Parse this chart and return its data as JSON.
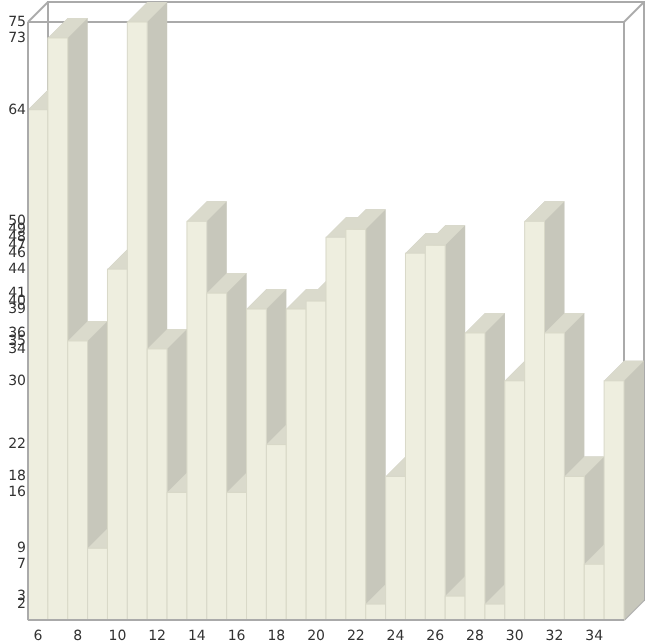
{
  "chart_data": {
    "type": "bar",
    "x": [
      6,
      7,
      8,
      9,
      10,
      11,
      12,
      13,
      14,
      15,
      16,
      17,
      18,
      19,
      20,
      21,
      22,
      23,
      24,
      25,
      26,
      27,
      28,
      29,
      30,
      31,
      32,
      33,
      34,
      35
    ],
    "values": [
      64,
      73,
      35,
      9,
      44,
      75,
      34,
      16,
      50,
      41,
      16,
      39,
      22,
      39,
      40,
      48,
      49,
      2,
      18,
      46,
      47,
      3,
      36,
      2,
      30,
      50,
      36,
      18,
      7,
      30
    ],
    "color": "#eeeedf",
    "xlim": [
      5.5,
      35.5
    ],
    "xticks": [
      6,
      8,
      10,
      12,
      14,
      16,
      18,
      20,
      22,
      24,
      26,
      28,
      30,
      32,
      34
    ],
    "ylim": [
      0,
      75
    ],
    "yticks": [
      2,
      3,
      7,
      9,
      16,
      18,
      22,
      30,
      34,
      35,
      36,
      39,
      40,
      41,
      44,
      46,
      47,
      48,
      49,
      50,
      64,
      73,
      75
    ],
    "grid": false
  }
}
